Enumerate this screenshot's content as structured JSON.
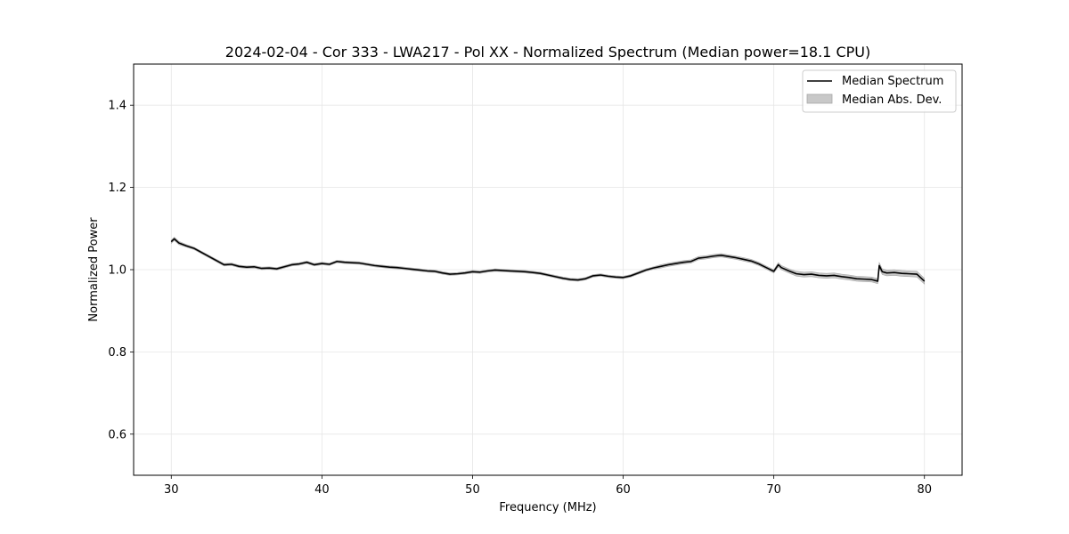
{
  "chart_data": {
    "type": "line",
    "title": "2024-02-04 - Cor 333 - LWA217 - Pol XX - Normalized Spectrum (Median power=18.1 CPU)",
    "xlabel": "Frequency (MHz)",
    "ylabel": "Normalized Power",
    "xlim": [
      27.5,
      82.5
    ],
    "ylim": [
      0.5,
      1.5
    ],
    "xticks": [
      30,
      40,
      50,
      60,
      70,
      80
    ],
    "xtick_labels": [
      "30",
      "40",
      "50",
      "60",
      "70",
      "80"
    ],
    "yticks": [
      0.6,
      0.8,
      1.0,
      1.2,
      1.4
    ],
    "ytick_labels": [
      "0.6",
      "0.8",
      "1.0",
      "1.2",
      "1.4"
    ],
    "grid": true,
    "legend_position": "top-right",
    "series": [
      {
        "name": "Median Spectrum",
        "color": "#000000",
        "x": [
          30,
          30.2,
          30.5,
          31,
          31.5,
          32,
          32.5,
          33,
          33.5,
          34,
          34.5,
          35,
          35.5,
          36,
          36.5,
          37,
          37.5,
          38,
          38.5,
          39,
          39.5,
          40,
          40.5,
          41,
          41.5,
          42,
          42.5,
          43,
          43.5,
          44,
          44.5,
          45,
          45.5,
          46,
          46.5,
          47,
          47.5,
          48,
          48.5,
          49,
          49.5,
          50,
          50.5,
          51,
          51.5,
          52,
          52.5,
          53,
          53.5,
          54,
          54.5,
          55,
          55.5,
          56,
          56.5,
          57,
          57.5,
          58,
          58.5,
          59,
          59.5,
          60,
          60.5,
          61,
          61.5,
          62,
          62.5,
          63,
          63.5,
          64,
          64.5,
          65,
          65.5,
          66,
          66.5,
          67,
          67.5,
          68,
          68.5,
          69,
          69.5,
          70,
          70.3,
          70.5,
          71,
          71.5,
          72,
          72.5,
          73,
          73.5,
          74,
          74.5,
          75,
          75.5,
          76,
          76.5,
          76.9,
          77,
          77.2,
          77.5,
          78,
          78.5,
          79,
          79.5,
          80
        ],
        "values": [
          1.068,
          1.075,
          1.065,
          1.058,
          1.052,
          1.042,
          1.032,
          1.022,
          1.012,
          1.013,
          1.008,
          1.006,
          1.007,
          1.003,
          1.004,
          1.002,
          1.007,
          1.012,
          1.014,
          1.018,
          1.012,
          1.015,
          1.013,
          1.02,
          1.018,
          1.017,
          1.016,
          1.013,
          1.01,
          1.008,
          1.006,
          1.005,
          1.003,
          1.001,
          0.999,
          0.997,
          0.996,
          0.992,
          0.989,
          0.99,
          0.992,
          0.995,
          0.994,
          0.997,
          0.999,
          0.998,
          0.997,
          0.996,
          0.995,
          0.993,
          0.991,
          0.987,
          0.983,
          0.979,
          0.976,
          0.975,
          0.978,
          0.985,
          0.987,
          0.984,
          0.982,
          0.981,
          0.985,
          0.992,
          0.999,
          1.004,
          1.008,
          1.012,
          1.015,
          1.018,
          1.02,
          1.028,
          1.03,
          1.033,
          1.035,
          1.032,
          1.029,
          1.025,
          1.021,
          1.014,
          1.005,
          0.996,
          1.012,
          1.005,
          0.997,
          0.99,
          0.988,
          0.989,
          0.986,
          0.985,
          0.986,
          0.983,
          0.981,
          0.978,
          0.977,
          0.976,
          0.972,
          1.01,
          0.995,
          0.992,
          0.993,
          0.991,
          0.99,
          0.989,
          0.972
        ]
      },
      {
        "name": "Median Abs. Dev.",
        "color": "#c8c8c8",
        "spread": [
          0.004,
          0.004,
          0.004,
          0.003,
          0.003,
          0.003,
          0.003,
          0.003,
          0.003,
          0.003,
          0.003,
          0.003,
          0.003,
          0.003,
          0.003,
          0.003,
          0.003,
          0.003,
          0.003,
          0.003,
          0.003,
          0.003,
          0.003,
          0.003,
          0.003,
          0.003,
          0.003,
          0.003,
          0.003,
          0.003,
          0.003,
          0.003,
          0.003,
          0.003,
          0.003,
          0.003,
          0.003,
          0.003,
          0.003,
          0.003,
          0.003,
          0.003,
          0.003,
          0.003,
          0.003,
          0.003,
          0.003,
          0.003,
          0.003,
          0.003,
          0.003,
          0.003,
          0.003,
          0.003,
          0.003,
          0.003,
          0.003,
          0.003,
          0.003,
          0.003,
          0.003,
          0.003,
          0.003,
          0.003,
          0.003,
          0.003,
          0.004,
          0.004,
          0.004,
          0.004,
          0.004,
          0.004,
          0.004,
          0.004,
          0.004,
          0.004,
          0.004,
          0.004,
          0.004,
          0.004,
          0.004,
          0.004,
          0.005,
          0.005,
          0.005,
          0.006,
          0.006,
          0.006,
          0.006,
          0.006,
          0.006,
          0.006,
          0.006,
          0.006,
          0.006,
          0.006,
          0.006,
          0.007,
          0.007,
          0.007,
          0.007,
          0.007,
          0.007,
          0.007,
          0.007
        ]
      }
    ]
  }
}
